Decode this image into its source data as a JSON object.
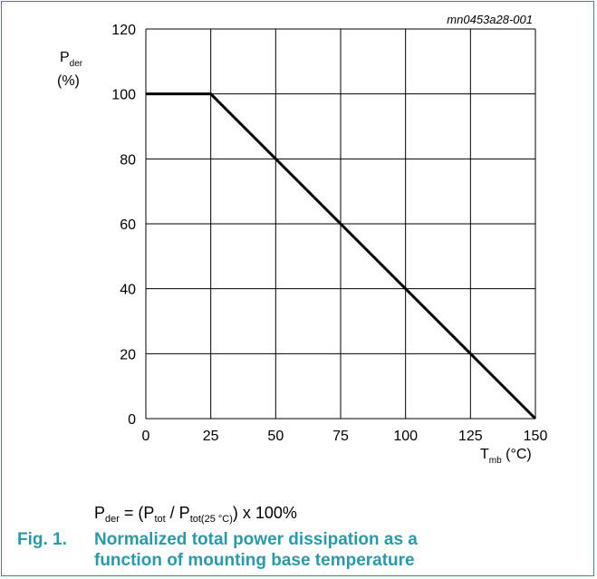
{
  "figure_id": "mn0453a28-001",
  "formula": {
    "lhs_main": "P",
    "lhs_sub": "der",
    "mid1": " = (P",
    "mid1_sub": "tot",
    "mid2": " / P",
    "mid2_sub": "tot(25 °C)",
    "tail": ") x 100%"
  },
  "caption": {
    "number": "Fig. 1.",
    "line1": "Normalized total power dissipation as a",
    "line2": "function of mounting base temperature"
  },
  "colors": {
    "line": "#000000",
    "grid": "#000000",
    "caption": "#2a9aa6",
    "frame": "#2a8f9a"
  },
  "chart_data": {
    "type": "line",
    "ylabel_main": "P",
    "ylabel_sub": "der",
    "ylabel_unit": "(%)",
    "xlabel_main": "T",
    "xlabel_sub": "mb",
    "xlabel_unit": " (°C)",
    "xlim": [
      0,
      150
    ],
    "ylim": [
      0,
      120
    ],
    "xticks": [
      0,
      25,
      50,
      75,
      100,
      125,
      150
    ],
    "yticks": [
      0,
      20,
      40,
      60,
      80,
      100,
      120
    ],
    "grid": true,
    "series": [
      {
        "x": [
          0,
          25,
          150
        ],
        "y": [
          100,
          100,
          0
        ]
      }
    ]
  }
}
